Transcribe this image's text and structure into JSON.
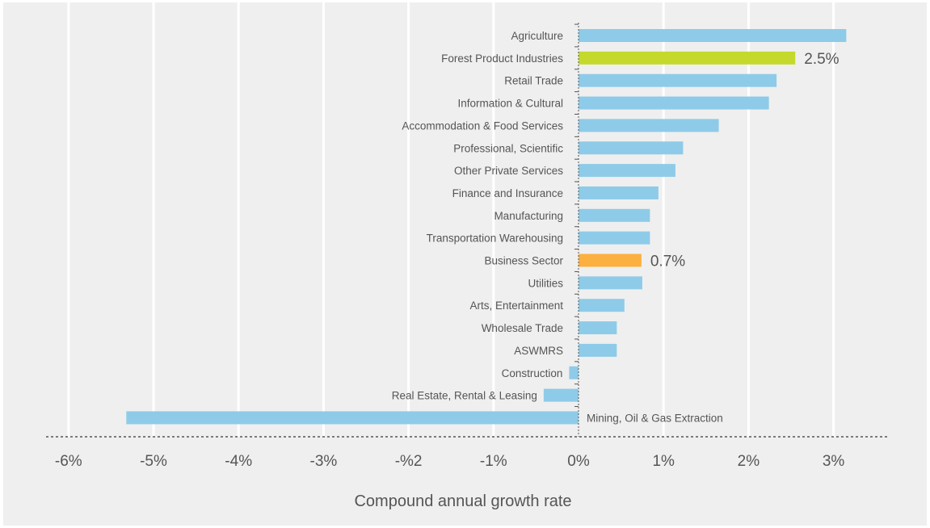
{
  "chart_data": {
    "type": "bar",
    "orientation": "horizontal",
    "xlabel": "Compound annual growth rate",
    "ylabel": "",
    "xlim": [
      -6,
      3.5
    ],
    "grid": "vertical",
    "x_ticks": [
      {
        "value": -6,
        "label": "-6%"
      },
      {
        "value": -5,
        "label": "-5%"
      },
      {
        "value": -4,
        "label": "-4%"
      },
      {
        "value": -3,
        "label": "-3%"
      },
      {
        "value": -2,
        "label": "-%2"
      },
      {
        "value": -1,
        "label": "-1%"
      },
      {
        "value": 0,
        "label": "0%"
      },
      {
        "value": 1,
        "label": "1%"
      },
      {
        "value": 2,
        "label": "2%"
      },
      {
        "value": 3,
        "label": "3%"
      }
    ],
    "categories": [
      "Agriculture",
      "Forest Product Industries",
      "Retail Trade",
      "Information & Cultural",
      "Accommodation & Food Services",
      "Professional, Scientific",
      "Other Private Services",
      "Finance and Insurance",
      "Manufacturing",
      "Transportation Warehousing",
      "Business Sector",
      "Utilities",
      "Arts, Entertainment",
      "Wholesale Trade",
      "ASWMRS",
      "Construction",
      "Real Estate, Rental & Leasing",
      "Mining, Oil & Gas Extraction"
    ],
    "values": [
      3.15,
      2.55,
      2.33,
      2.24,
      1.65,
      1.23,
      1.14,
      0.94,
      0.84,
      0.84,
      0.74,
      0.75,
      0.54,
      0.45,
      0.45,
      -0.11,
      -0.41,
      -5.32
    ],
    "highlights": [
      {
        "category": "Forest Product Industries",
        "label": "2.5%",
        "color": "#c5d92d"
      },
      {
        "category": "Business Sector",
        "label": "0.7%",
        "color": "#fbb040"
      }
    ],
    "colors": {
      "default_bar": "#8ecbe8",
      "panel_background": "#efefef",
      "gridline": "#ffffff",
      "text": "#555555",
      "axis_line": "#555555"
    }
  }
}
